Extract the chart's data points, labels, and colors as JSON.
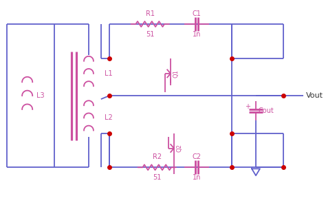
{
  "wire_color": "#6060cc",
  "component_color": "#cc50a0",
  "dot_color": "#cc0000",
  "label_color_pink": "#cc50a0",
  "label_color_dark": "#333333",
  "wire_label_color": "#333333",
  "bg_color": "#ffffff",
  "figsize": [
    4.74,
    3.14
  ],
  "dpi": 100,
  "xlim": [
    0,
    474
  ],
  "ylim": [
    0,
    314
  ]
}
